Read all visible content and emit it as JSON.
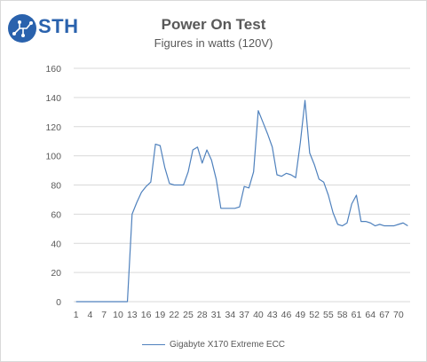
{
  "branding": {
    "logo_text": "STH",
    "logo_icon": "sth-circuit-logo-icon"
  },
  "colors": {
    "series": "#4f81bd",
    "grid": "#d9d9d9",
    "text": "#595959",
    "brand": "#2a62ad"
  },
  "chart_data": {
    "type": "line",
    "title": "Power On Test",
    "subtitle": "Figures in watts (120V)",
    "xlabel": "",
    "ylabel": "",
    "ylim": [
      0,
      160
    ],
    "yticks": [
      0,
      20,
      40,
      60,
      80,
      100,
      120,
      140,
      160
    ],
    "xtick_labels": [
      "1",
      "4",
      "7",
      "10",
      "13",
      "16",
      "19",
      "22",
      "25",
      "28",
      "31",
      "34",
      "37",
      "40",
      "43",
      "46",
      "49",
      "52",
      "55",
      "58",
      "61",
      "64",
      "67",
      "70"
    ],
    "grid": true,
    "legend_position": "bottom",
    "x": [
      1,
      2,
      3,
      4,
      5,
      6,
      7,
      8,
      9,
      10,
      11,
      12,
      13,
      14,
      15,
      16,
      17,
      18,
      19,
      20,
      21,
      22,
      23,
      24,
      25,
      26,
      27,
      28,
      29,
      30,
      31,
      32,
      33,
      34,
      35,
      36,
      37,
      38,
      39,
      40,
      41,
      42,
      43,
      44,
      45,
      46,
      47,
      48,
      49,
      50,
      51,
      52,
      53,
      54,
      55,
      56,
      57,
      58,
      59,
      60,
      61,
      62,
      63,
      64,
      65,
      66,
      67,
      68,
      69,
      70,
      71,
      72
    ],
    "series": [
      {
        "name": "Gigabyte  X170 Extreme ECC",
        "values": [
          0,
          0,
          0,
          0,
          0,
          0,
          0,
          0,
          0,
          0,
          0,
          0,
          60,
          68,
          75,
          79,
          82,
          108,
          107,
          92,
          81,
          80,
          80,
          80,
          89,
          104,
          106,
          95,
          104,
          97,
          84,
          64,
          64,
          64,
          64,
          65,
          79,
          78,
          89,
          131,
          123,
          115,
          106,
          87,
          86,
          88,
          87,
          85,
          109,
          138,
          102,
          94,
          84,
          82,
          73,
          61,
          53,
          52,
          54,
          67,
          73,
          55,
          55,
          54,
          52,
          53,
          52,
          52,
          52,
          53,
          54,
          52
        ]
      }
    ]
  }
}
